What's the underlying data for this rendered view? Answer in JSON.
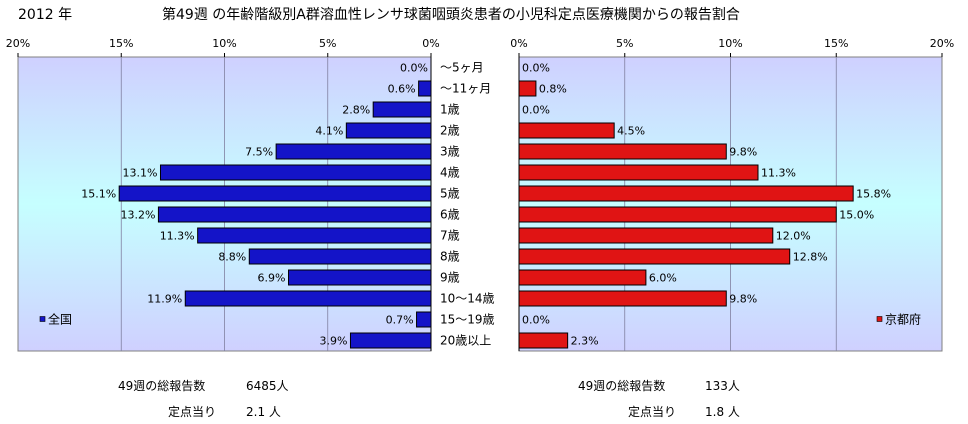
{
  "header": {
    "year": "2012 年",
    "title": "第49週 の年齢階級別A群溶血性レンサ球菌咽頭炎患者の小児科定点医療機関からの報告割合"
  },
  "chart_data": {
    "type": "bar",
    "orientation": "horizontal",
    "categories": [
      "～5ヶ月",
      "～11ヶ月",
      "1歳",
      "2歳",
      "3歳",
      "4歳",
      "5歳",
      "6歳",
      "7歳",
      "8歳",
      "9歳",
      "10～14歳",
      "15～19歳",
      "20歳以上"
    ],
    "xlim": [
      0,
      20
    ],
    "ticks": [
      0,
      5,
      10,
      15,
      20
    ],
    "tick_labels": [
      "0%",
      "5%",
      "10%",
      "15%",
      "20%"
    ],
    "series": [
      {
        "name": "全国",
        "color": "#1414c8",
        "values": [
          0.0,
          0.6,
          2.8,
          4.1,
          7.5,
          13.1,
          15.1,
          13.2,
          11.3,
          8.8,
          6.9,
          11.9,
          0.7,
          3.9
        ],
        "labels": [
          "0.0%",
          "0.6%",
          "2.8%",
          "4.1%",
          "7.5%",
          "13.1%",
          "15.1%",
          "13.2%",
          "11.3%",
          "8.8%",
          "6.9%",
          "11.9%",
          "0.7%",
          "3.9%"
        ]
      },
      {
        "name": "京都府",
        "color": "#e01414",
        "values": [
          0.0,
          0.8,
          0.0,
          4.5,
          9.8,
          11.3,
          15.8,
          15.0,
          12.0,
          12.8,
          6.0,
          9.8,
          0.0,
          2.3
        ],
        "labels": [
          "0.0%",
          "0.8%",
          "0.0%",
          "4.5%",
          "9.8%",
          "11.3%",
          "15.8%",
          "15.0%",
          "12.0%",
          "12.8%",
          "6.0%",
          "9.8%",
          "0.0%",
          "2.3%"
        ]
      }
    ]
  },
  "footer": {
    "left": {
      "total_label": "49週の総報告数",
      "total_value": "6485人",
      "per_label": "定点当り",
      "per_value": "2.1 人"
    },
    "right": {
      "total_label": "49週の総報告数",
      "total_value": "133人",
      "per_label": "定点当り",
      "per_value": "1.8 人"
    }
  }
}
